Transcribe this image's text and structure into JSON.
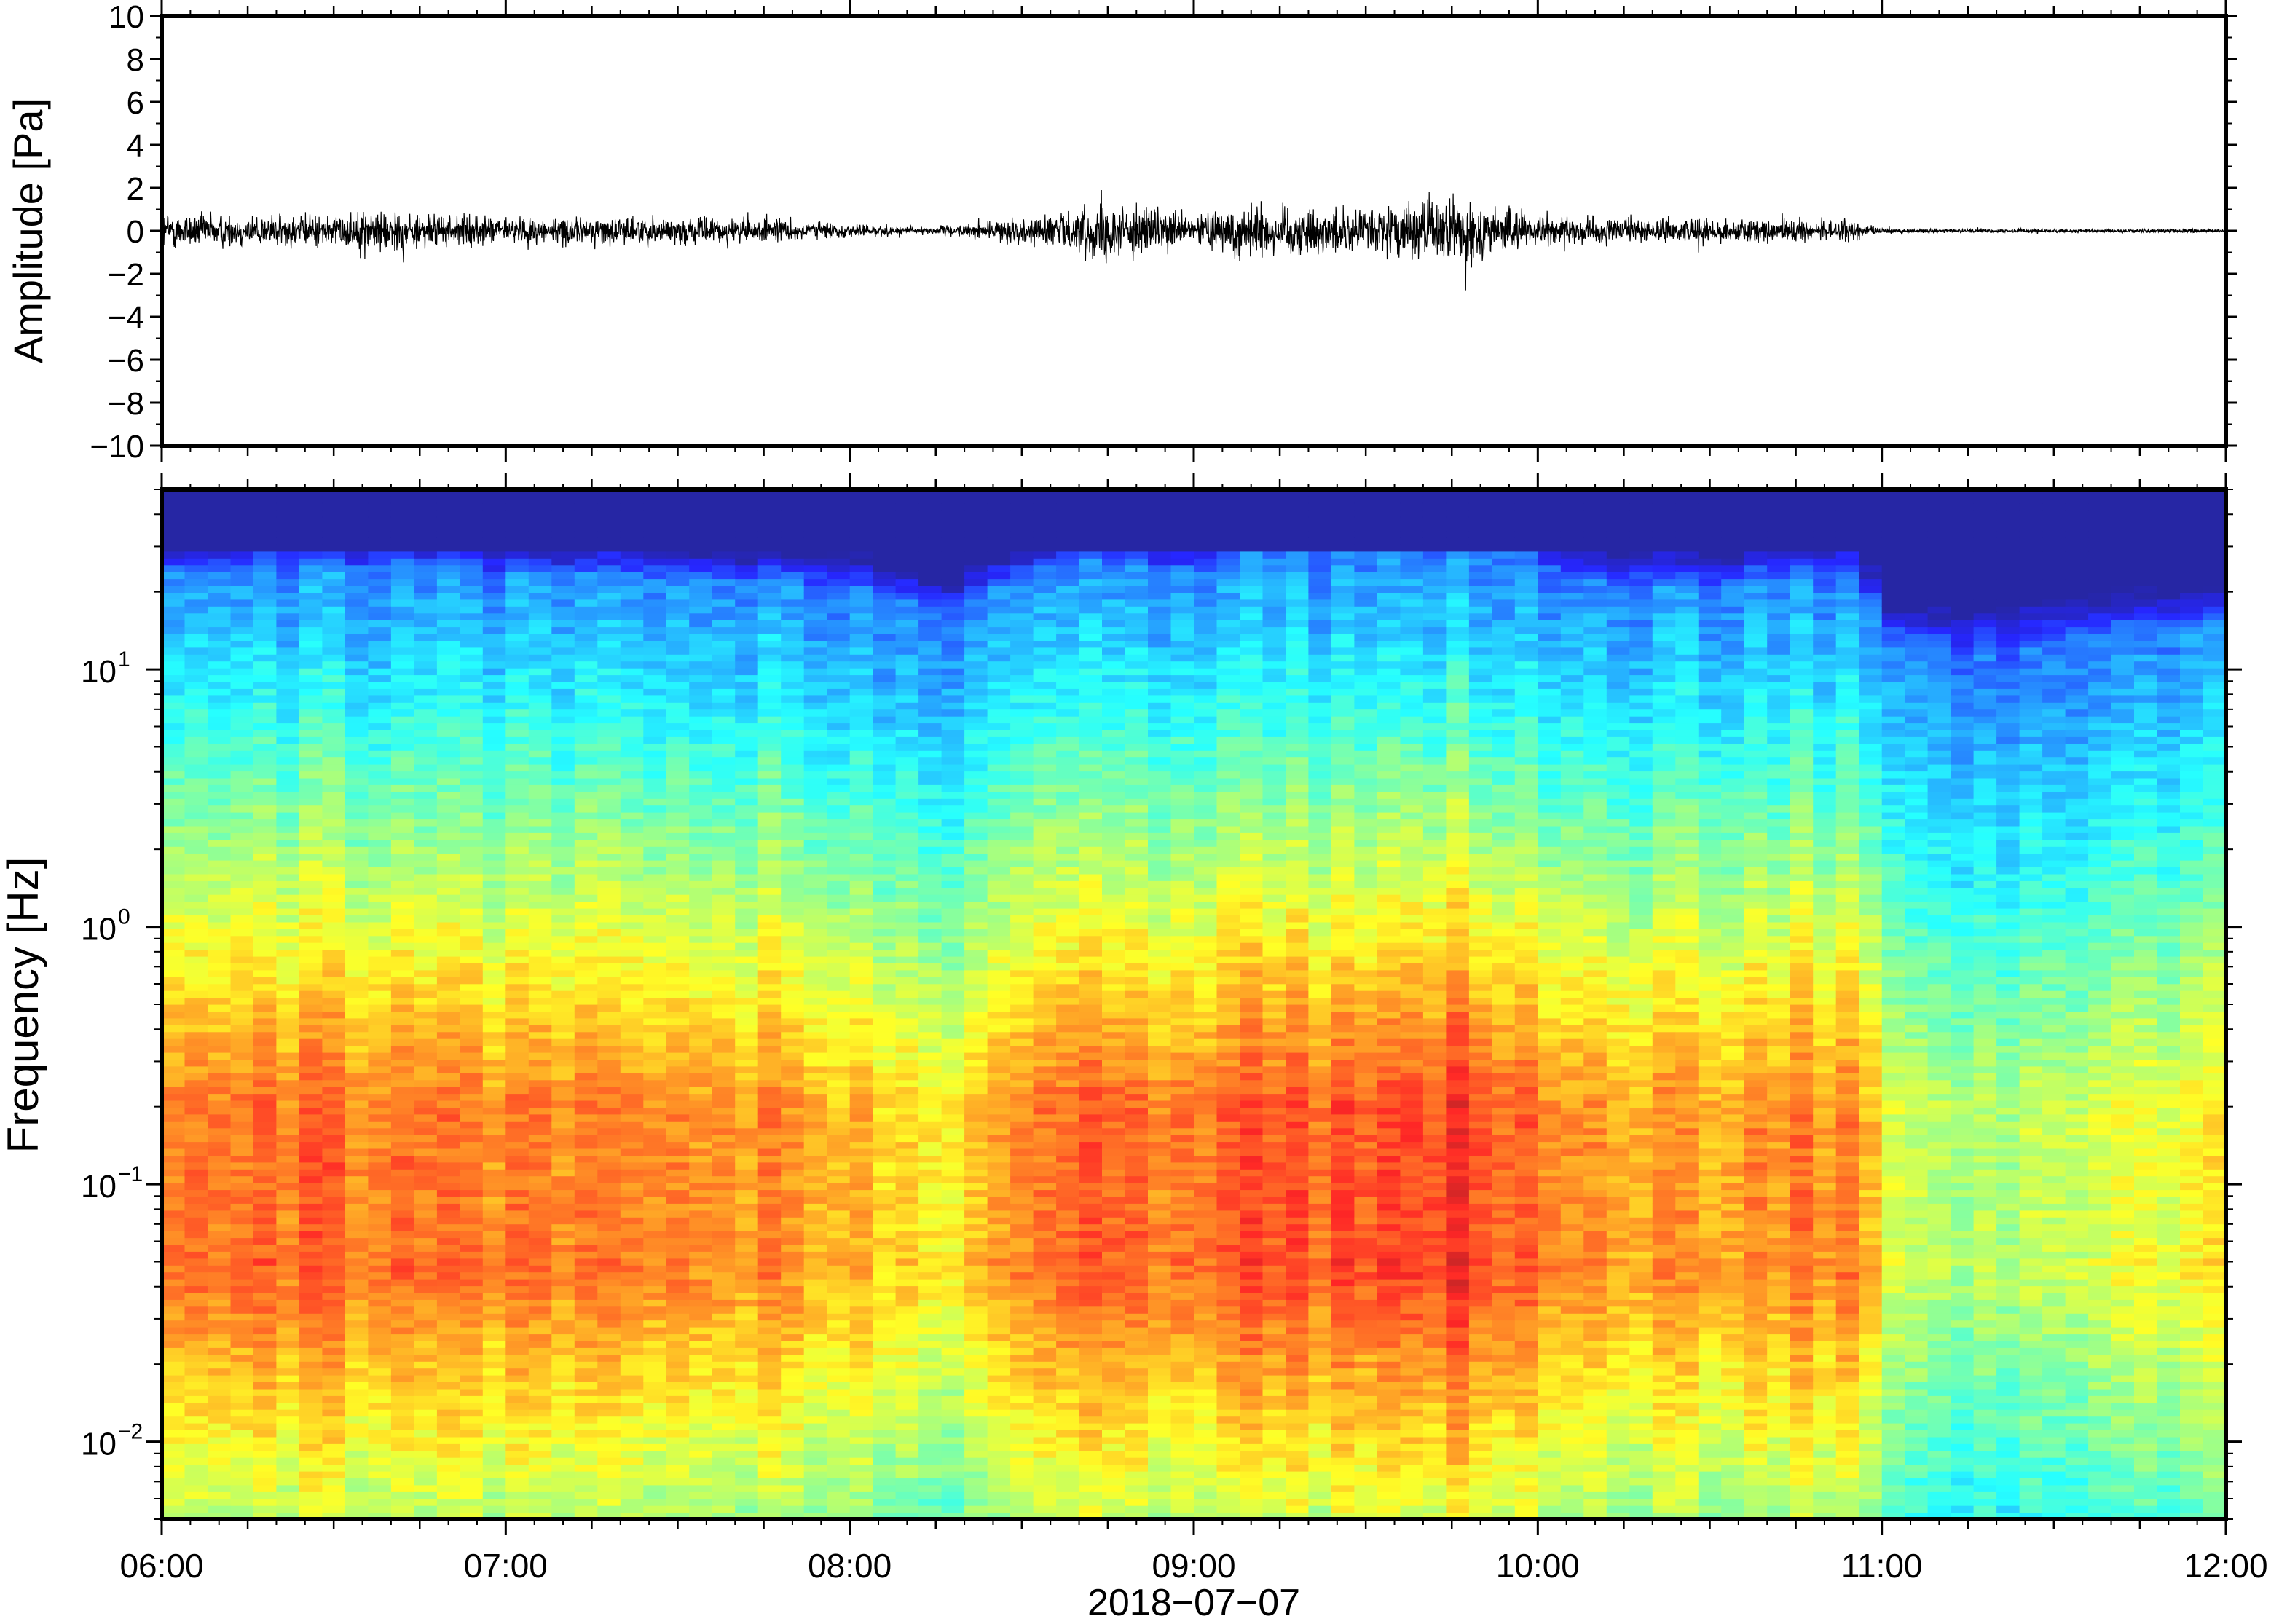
{
  "chart_data": [
    {
      "type": "line",
      "panel": "waveform",
      "ylabel": "Amplitude [Pa]",
      "ylim": [
        -10,
        10
      ],
      "yticks": [
        -10,
        -8,
        -6,
        -4,
        -2,
        0,
        2,
        4,
        6,
        8,
        10
      ],
      "ytick_labels": [
        "−10",
        "−8",
        "−6",
        "−4",
        "−2",
        "0",
        "2",
        "4",
        "6",
        "8",
        "10"
      ],
      "xlim": [
        "06:00",
        "12:00"
      ],
      "envelope": {
        "description_x_hours": [
          6.0,
          6.25,
          6.5,
          6.65,
          6.75,
          7.0,
          7.25,
          7.5,
          7.75,
          8.0,
          8.25,
          8.4,
          8.6,
          8.75,
          9.0,
          9.15,
          9.3,
          9.5,
          9.75,
          9.9,
          10.0,
          10.25,
          10.5,
          10.75,
          10.9,
          11.0,
          11.25,
          11.5,
          11.75,
          12.0
        ],
        "abs_max_pa": [
          1.4,
          1.2,
          1.2,
          1.7,
          1.2,
          1.0,
          1.0,
          1.0,
          0.9,
          0.5,
          0.3,
          0.6,
          1.3,
          2.2,
          1.0,
          2.2,
          1.8,
          1.6,
          2.5,
          1.8,
          1.0,
          0.9,
          0.9,
          0.8,
          0.8,
          0.2,
          0.15,
          0.15,
          0.15,
          0.15
        ]
      }
    },
    {
      "type": "heatmap",
      "panel": "spectrogram",
      "ylabel": "Frequency [Hz]",
      "yscale": "log",
      "ylim": [
        0.005,
        50
      ],
      "yticks": [
        0.01,
        0.1,
        1,
        10
      ],
      "ytick_labels": [
        {
          "base": "10",
          "exp": "−2"
        },
        {
          "base": "10",
          "exp": "−1"
        },
        {
          "base": "10",
          "exp": "0"
        },
        {
          "base": "10",
          "exp": "1"
        }
      ],
      "xlabel": "2018−07−07",
      "xlim": [
        "06:00",
        "12:00"
      ],
      "xtick_labels": [
        "06:00",
        "07:00",
        "08:00",
        "09:00",
        "10:00",
        "11:00",
        "12:00"
      ],
      "colormap": "jet",
      "energy_profile": {
        "description_x_hours": [
          6.0,
          6.65,
          6.75,
          7.0,
          7.5,
          8.0,
          8.2,
          8.3,
          8.45,
          8.7,
          9.0,
          9.2,
          9.5,
          9.75,
          9.9,
          10.1,
          10.5,
          10.8,
          10.95,
          11.0,
          11.25,
          11.5,
          12.0
        ],
        "relative_level": [
          0.62,
          0.66,
          0.64,
          0.6,
          0.6,
          0.55,
          0.45,
          0.42,
          0.55,
          0.68,
          0.62,
          0.72,
          0.7,
          0.78,
          0.74,
          0.6,
          0.55,
          0.62,
          0.58,
          0.25,
          0.22,
          0.28,
          0.35
        ]
      }
    }
  ]
}
